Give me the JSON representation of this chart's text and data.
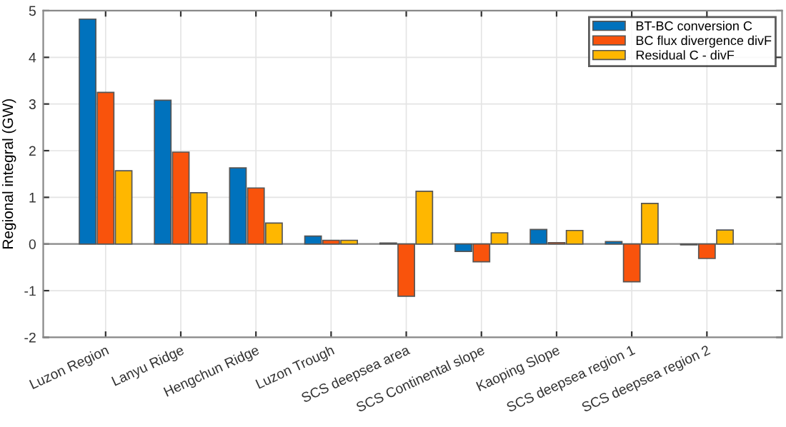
{
  "chart_data": {
    "type": "bar",
    "ylabel": "Regional integral (GW)",
    "categories": [
      "Luzon Region",
      "Lanyu Ridge",
      "Hengchun Ridge",
      "Luzon Trough",
      "SCS deepsea area",
      "SCS Continental slope",
      "Kaoping Slope",
      "SCS deepsea region 1",
      "SCS deepsea region 2"
    ],
    "series": [
      {
        "name": "BT-BC conversion C",
        "color": "#0072bd",
        "values": [
          4.82,
          3.08,
          1.63,
          0.17,
          0.02,
          -0.16,
          0.31,
          0.05,
          -0.02
        ]
      },
      {
        "name": "BC flux divergence divF",
        "color": "#f9530c",
        "values": [
          3.25,
          1.97,
          1.2,
          0.08,
          -1.12,
          -0.38,
          0.03,
          -0.81,
          -0.31
        ]
      },
      {
        "name": "Residual C - divF",
        "color": "#ffb700",
        "values": [
          1.57,
          1.1,
          0.45,
          0.08,
          1.13,
          0.24,
          0.29,
          0.87,
          0.3
        ]
      }
    ],
    "ylim": [
      -2,
      5
    ],
    "yticks": [
      -2,
      -1,
      0,
      1,
      2,
      3,
      4,
      5
    ],
    "grid": true,
    "legend": "top right"
  }
}
